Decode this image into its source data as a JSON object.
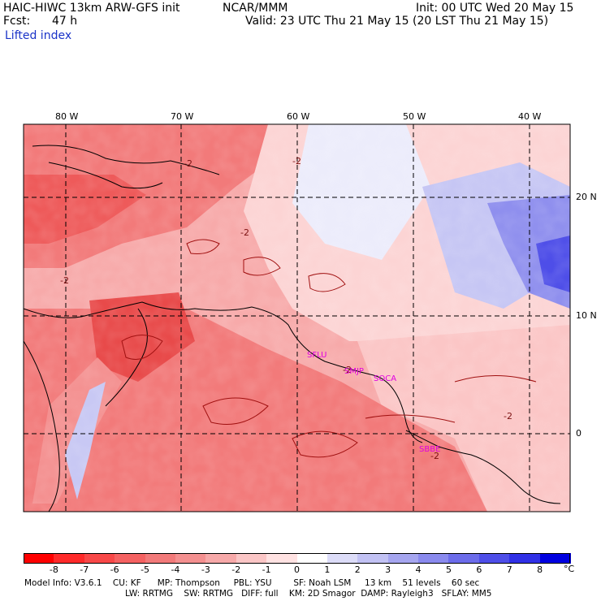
{
  "header": {
    "model": "HAIC-HIWC 13km ARW-GFS init",
    "org": "NCAR/MMM",
    "fcst_label": "Fcst:",
    "fcst_value": "47 h",
    "field": "Lifted index",
    "init": "Init: 00 UTC Wed 20 May 15",
    "valid": "Valid: 23 UTC Thu 21 May 15 (20 LST Thu 21 May 15)"
  },
  "map": {
    "lon_labels": [
      "80 W",
      "70 W",
      "60 W",
      "50 W",
      "40 W"
    ],
    "lat_labels": [
      "20 N",
      "10 N",
      "0"
    ],
    "contour_labels": [
      "-2",
      "-2",
      "-2",
      "-2",
      "-2",
      "-2",
      "-2"
    ],
    "stations": [
      "SFLU",
      "SMJP",
      "SOCA",
      "SBBE"
    ],
    "station_color": "#e000e0"
  },
  "colorbar": {
    "labels": [
      "-8",
      "-7",
      "-6",
      "-5",
      "-4",
      "-3",
      "-2",
      "-1",
      "0",
      "1",
      "2",
      "3",
      "4",
      "5",
      "6",
      "7",
      "8"
    ],
    "unit": "°C",
    "colors": [
      "#ff0000",
      "#ff2a2a",
      "#f84848",
      "#f56262",
      "#f27a7a",
      "#f49090",
      "#f7a9a9",
      "#fbc6c6",
      "#ffe2e2",
      "#ffffff",
      "#dcdcf8",
      "#c2c2f4",
      "#a6a6f0",
      "#8a8aee",
      "#6c6cea",
      "#4e4ee8",
      "#3030e6",
      "#0000e0"
    ]
  },
  "footer": {
    "line1": "Model Info: V3.6.1    CU: KF      MP: Thompson     PBL: YSU        SF: Noah LSM     13 km    51 levels    60 sec",
    "line2": "LW: RRTMG    SW: RRTMG   DIFF: full    KM: 2D Smagor  DAMP: Rayleigh3   SFLAY: MM5"
  }
}
